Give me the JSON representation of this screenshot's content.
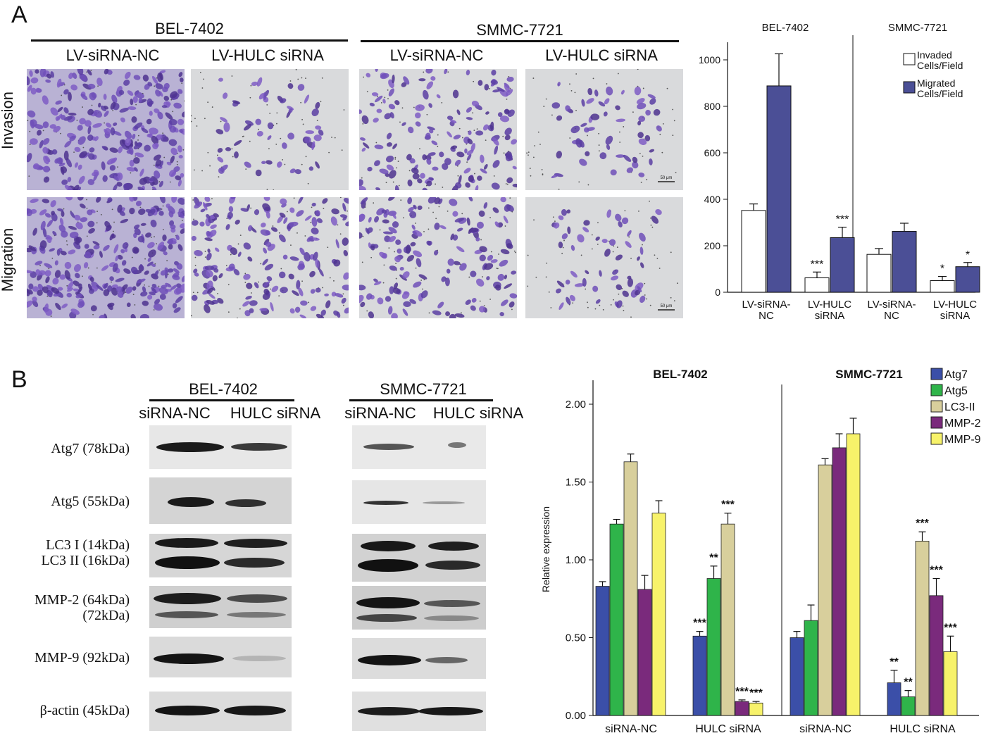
{
  "panel_a": {
    "letter": "A",
    "groups": [
      {
        "name": "BEL-7402",
        "conditions": [
          "LV-siRNA-NC",
          "LV-HULC siRNA"
        ]
      },
      {
        "name": "SMMC-7721",
        "conditions": [
          "LV-siRNA-NC",
          "LV-HULC siRNA"
        ]
      }
    ],
    "row_labels": [
      "Invasion",
      "Migration"
    ],
    "scale_bar": "50 μm",
    "colors": {
      "stain": "#6a4fb0",
      "background": "#d9dadc",
      "migrated_bar": "#4b4f96",
      "invaded_bar": "#ffffff"
    }
  },
  "panel_b": {
    "letter": "B",
    "blot_groups": [
      {
        "name": "BEL-7402",
        "conditions": [
          "siRNA-NC",
          "HULC siRNA"
        ]
      },
      {
        "name": "SMMC-7721",
        "conditions": [
          "siRNA-NC",
          "HULC siRNA"
        ]
      }
    ],
    "blot_labels": [
      {
        "lines": [
          "Atg7 (78kDa)"
        ]
      },
      {
        "lines": [
          "Atg5 (55kDa)"
        ]
      },
      {
        "lines": [
          "LC3 I (14kDa)",
          "LC3 II (16kDa)"
        ]
      },
      {
        "lines": [
          "MMP-2 (64kDa)",
          "(72kDa)"
        ]
      },
      {
        "lines": [
          "MMP-9 (92kDa)"
        ]
      },
      {
        "lines": [
          "β-actin (45kDa)"
        ]
      }
    ],
    "colors": {
      "Atg7": "#3b4fa8",
      "Atg5": "#2fb44a",
      "LC3-II": "#d8cf9c",
      "MMP-2": "#7a2a7c",
      "MMP-9": "#f7f26a"
    }
  },
  "chart_data": [
    {
      "type": "bar",
      "panels": [
        "BEL-7402",
        "SMMC-7721"
      ],
      "categories": [
        "LV-siRNA-NC",
        "LV-HULC siRNA"
      ],
      "series": [
        {
          "name": "Invaded Cells/Field",
          "values": {
            "BEL-7402": [
              352,
              62
            ],
            "SMMC-7721": [
              163,
              50
            ]
          },
          "errors": {
            "BEL-7402": [
              28,
              25
            ],
            "SMMC-7721": [
              25,
              18
            ]
          },
          "significance": {
            "BEL-7402": [
              "",
              "***"
            ],
            "SMMC-7721": [
              "",
              "*"
            ]
          }
        },
        {
          "name": "Migrated Cells/Field",
          "values": {
            "BEL-7402": [
              888,
              235
            ],
            "SMMC-7721": [
              262,
              110
            ]
          },
          "errors": {
            "BEL-7402": [
              138,
              45
            ],
            "SMMC-7721": [
              35,
              18
            ]
          },
          "significance": {
            "BEL-7402": [
              "",
              "***"
            ],
            "SMMC-7721": [
              "",
              "*"
            ]
          }
        }
      ],
      "yticks": [
        0,
        200,
        400,
        600,
        800,
        1000
      ],
      "ylim": [
        0,
        1000
      ],
      "legend": "top-right"
    },
    {
      "type": "bar",
      "panels": [
        "BEL-7402",
        "SMMC-7721"
      ],
      "categories": [
        "siRNA-NC",
        "HULC siRNA"
      ],
      "ylabel": "Relative expression",
      "yticks": [
        "0.00",
        "0.50",
        "1.00",
        "1.50",
        "2.00"
      ],
      "ylim": [
        0,
        2.0
      ],
      "series": [
        {
          "name": "Atg7",
          "values": {
            "BEL-7402": [
              0.83,
              0.51
            ],
            "SMMC-7721": [
              0.5,
              0.21
            ]
          },
          "errors": {
            "BEL-7402": [
              0.03,
              0.03
            ],
            "SMMC-7721": [
              0.04,
              0.08
            ]
          },
          "significance": {
            "BEL-7402": [
              "",
              "***"
            ],
            "SMMC-7721": [
              "",
              "**"
            ]
          }
        },
        {
          "name": "Atg5",
          "values": {
            "BEL-7402": [
              1.23,
              0.88
            ],
            "SMMC-7721": [
              0.61,
              0.12
            ]
          },
          "errors": {
            "BEL-7402": [
              0.03,
              0.08
            ],
            "SMMC-7721": [
              0.1,
              0.04
            ]
          },
          "significance": {
            "BEL-7402": [
              "",
              "**"
            ],
            "SMMC-7721": [
              "",
              "**"
            ]
          }
        },
        {
          "name": "LC3-II",
          "values": {
            "BEL-7402": [
              1.63,
              1.23
            ],
            "SMMC-7721": [
              1.61,
              1.12
            ]
          },
          "errors": {
            "BEL-7402": [
              0.05,
              0.07
            ],
            "SMMC-7721": [
              0.04,
              0.06
            ]
          },
          "significance": {
            "BEL-7402": [
              "",
              "***"
            ],
            "SMMC-7721": [
              "",
              "***"
            ]
          }
        },
        {
          "name": "MMP-2",
          "values": {
            "BEL-7402": [
              0.81,
              0.09
            ],
            "SMMC-7721": [
              1.72,
              0.77
            ]
          },
          "errors": {
            "BEL-7402": [
              0.09,
              0.01
            ],
            "SMMC-7721": [
              0.09,
              0.11
            ]
          },
          "significance": {
            "BEL-7402": [
              "",
              "***"
            ],
            "SMMC-7721": [
              "",
              "***"
            ]
          }
        },
        {
          "name": "MMP-9",
          "values": {
            "BEL-7402": [
              1.3,
              0.08
            ],
            "SMMC-7721": [
              1.81,
              0.41
            ]
          },
          "errors": {
            "BEL-7402": [
              0.08,
              0.01
            ],
            "SMMC-7721": [
              0.1,
              0.1
            ]
          },
          "significance": {
            "BEL-7402": [
              "",
              "***"
            ],
            "SMMC-7721": [
              "",
              "***"
            ]
          }
        }
      ],
      "legend": "top-right"
    }
  ]
}
